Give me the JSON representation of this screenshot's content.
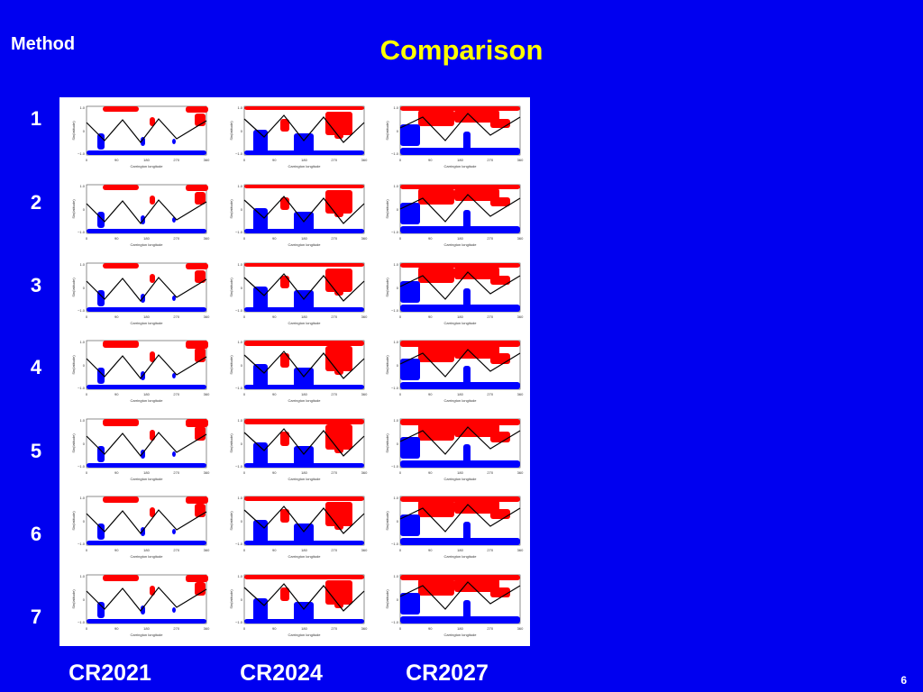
{
  "header": {
    "section": "Method",
    "title": "Comparison"
  },
  "rows": [
    "1",
    "2",
    "3",
    "4",
    "5",
    "6",
    "7"
  ],
  "columns": [
    "CR2021",
    "CR2024",
    "CR2027"
  ],
  "plot": {
    "ylabel": "Sin(latitude)",
    "xlabel": "Carrington longitude",
    "x_ticks": [
      "0",
      "90",
      "180",
      "270",
      "360"
    ],
    "y_ticks": [
      "1.0",
      "0",
      "−1.0"
    ]
  },
  "colors": {
    "background": "#0000f0",
    "title": "#ffff00",
    "positive": "#ff0000",
    "negative": "#0000ff",
    "neutral_line": "#000000"
  },
  "footer": {
    "page_number": "6"
  }
}
